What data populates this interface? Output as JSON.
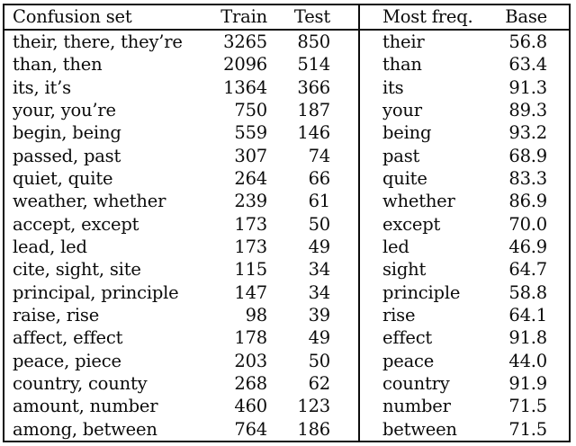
{
  "table": {
    "headers": {
      "confusion_set": "Confusion set",
      "train": "Train",
      "test": "Test",
      "most_freq": "Most freq.",
      "base": "Base"
    },
    "rows": [
      {
        "confusion_set": "their, there, they’re",
        "train": "3265",
        "test": "850",
        "most_freq": "their",
        "base": "56.8"
      },
      {
        "confusion_set": "than, then",
        "train": "2096",
        "test": "514",
        "most_freq": "than",
        "base": "63.4"
      },
      {
        "confusion_set": "its, it’s",
        "train": "1364",
        "test": "366",
        "most_freq": "its",
        "base": "91.3"
      },
      {
        "confusion_set": "your, you’re",
        "train": "750",
        "test": "187",
        "most_freq": "your",
        "base": "89.3"
      },
      {
        "confusion_set": "begin, being",
        "train": "559",
        "test": "146",
        "most_freq": "being",
        "base": "93.2"
      },
      {
        "confusion_set": "passed, past",
        "train": "307",
        "test": "74",
        "most_freq": "past",
        "base": "68.9"
      },
      {
        "confusion_set": "quiet, quite",
        "train": "264",
        "test": "66",
        "most_freq": "quite",
        "base": "83.3"
      },
      {
        "confusion_set": "weather, whether",
        "train": "239",
        "test": "61",
        "most_freq": "whether",
        "base": "86.9"
      },
      {
        "confusion_set": "accept, except",
        "train": "173",
        "test": "50",
        "most_freq": "except",
        "base": "70.0"
      },
      {
        "confusion_set": "lead, led",
        "train": "173",
        "test": "49",
        "most_freq": "led",
        "base": "46.9"
      },
      {
        "confusion_set": "cite, sight, site",
        "train": "115",
        "test": "34",
        "most_freq": "sight",
        "base": "64.7"
      },
      {
        "confusion_set": "principal, principle",
        "train": "147",
        "test": "34",
        "most_freq": "principle",
        "base": "58.8"
      },
      {
        "confusion_set": "raise, rise",
        "train": "98",
        "test": "39",
        "most_freq": "rise",
        "base": "64.1"
      },
      {
        "confusion_set": "affect, effect",
        "train": "178",
        "test": "49",
        "most_freq": "effect",
        "base": "91.8"
      },
      {
        "confusion_set": "peace, piece",
        "train": "203",
        "test": "50",
        "most_freq": "peace",
        "base": "44.0"
      },
      {
        "confusion_set": "country, county",
        "train": "268",
        "test": "62",
        "most_freq": "country",
        "base": "91.9"
      },
      {
        "confusion_set": "amount, number",
        "train": "460",
        "test": "123",
        "most_freq": "number",
        "base": "71.5"
      },
      {
        "confusion_set": "among, between",
        "train": "764",
        "test": "186",
        "most_freq": "between",
        "base": "71.5"
      }
    ]
  }
}
